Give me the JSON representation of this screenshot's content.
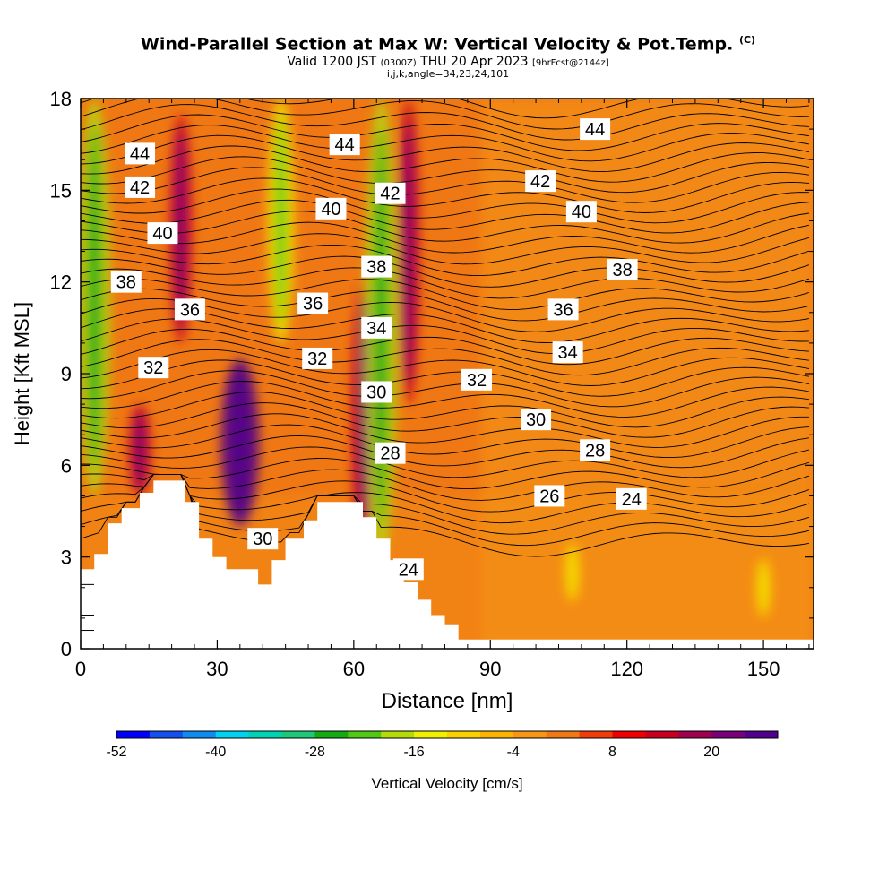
{
  "titles": {
    "main": "Wind-Parallel Section at Max W: Vertical Velocity & Pot.Temp.",
    "main_mark": "(C)",
    "valid_prefix": "Valid 1200 JST",
    "valid_zulu": "(0300Z)",
    "valid_date": "THU 20 Apr 2023",
    "forecast": "[9hrFcst@2144z]",
    "indices": "i,j,k,angle=34,23,24,101"
  },
  "chart_data": {
    "type": "heatmap",
    "title": "Wind-Parallel Section at Max W: Vertical Velocity & Pot.Temp.",
    "xlabel": "Distance [nm]",
    "ylabel": "Height [Kft MSL]",
    "xlim": [
      0,
      161
    ],
    "ylim": [
      0,
      18
    ],
    "x_ticks": [
      0,
      30,
      60,
      90,
      120,
      150
    ],
    "y_ticks": [
      0,
      3,
      6,
      9,
      12,
      15,
      18
    ],
    "colorbar": {
      "label": "Vertical Velocity [cm/s]",
      "min": -52,
      "max": 28,
      "step": 4,
      "tick_values": [
        -52,
        -40,
        -28,
        -16,
        -4,
        8,
        20
      ],
      "colors": [
        "#0000ff",
        "#1450f0",
        "#0f8cf0",
        "#00d2f0",
        "#00d2b4",
        "#1ec878",
        "#14aa14",
        "#50c814",
        "#b4dc0a",
        "#f0f000",
        "#fad200",
        "#fab400",
        "#f59614",
        "#f07814",
        "#f03c0a",
        "#f00000",
        "#c8001e",
        "#a00050",
        "#780078",
        "#50008c"
      ]
    },
    "velocity_features": [
      {
        "x": 3,
        "y_range": [
          5,
          18
        ],
        "w_cms": -20
      },
      {
        "x": 13,
        "y_range": [
          5,
          8
        ],
        "w_cms": 14
      },
      {
        "x": 22,
        "y_range": [
          10,
          17.5
        ],
        "w_cms": 14
      },
      {
        "x": 35,
        "y_range": [
          4,
          9.5
        ],
        "w_cms": 24
      },
      {
        "x": 44,
        "y_range": [
          10,
          18
        ],
        "w_cms": -16
      },
      {
        "x": 62,
        "y_range": [
          3,
          12
        ],
        "w_cms": 14
      },
      {
        "x": 66,
        "y_range": [
          3,
          18
        ],
        "w_cms": -20
      },
      {
        "x": 72,
        "y_range": [
          8,
          18
        ],
        "w_cms": 14
      },
      {
        "x": 108,
        "y_range": [
          1.5,
          3.5
        ],
        "w_cms": -8
      },
      {
        "x": 150,
        "y_range": [
          1,
          3
        ],
        "w_cms": -8
      }
    ],
    "theta_contours": {
      "variable": "Potential temperature (C)",
      "interval": 1,
      "labels": [
        {
          "value": 44,
          "x": 13,
          "y": 16.2
        },
        {
          "value": 44,
          "x": 58,
          "y": 16.5
        },
        {
          "value": 44,
          "x": 113,
          "y": 17.0
        },
        {
          "value": 42,
          "x": 13,
          "y": 15.1
        },
        {
          "value": 42,
          "x": 68,
          "y": 14.9
        },
        {
          "value": 42,
          "x": 101,
          "y": 15.3
        },
        {
          "value": 40,
          "x": 18,
          "y": 13.6
        },
        {
          "value": 40,
          "x": 55,
          "y": 14.4
        },
        {
          "value": 40,
          "x": 110,
          "y": 14.3
        },
        {
          "value": 38,
          "x": 10,
          "y": 12.0
        },
        {
          "value": 38,
          "x": 65,
          "y": 12.5
        },
        {
          "value": 38,
          "x": 119,
          "y": 12.4
        },
        {
          "value": 36,
          "x": 24,
          "y": 11.1
        },
        {
          "value": 36,
          "x": 51,
          "y": 11.3
        },
        {
          "value": 36,
          "x": 106,
          "y": 11.1
        },
        {
          "value": 34,
          "x": 65,
          "y": 10.5
        },
        {
          "value": 34,
          "x": 107,
          "y": 9.7
        },
        {
          "value": 32,
          "x": 16,
          "y": 9.2
        },
        {
          "value": 32,
          "x": 52,
          "y": 9.5
        },
        {
          "value": 32,
          "x": 87,
          "y": 8.8
        },
        {
          "value": 30,
          "x": 65,
          "y": 8.4
        },
        {
          "value": 30,
          "x": 100,
          "y": 7.5
        },
        {
          "value": 30,
          "x": 40,
          "y": 3.6
        },
        {
          "value": 28,
          "x": 68,
          "y": 6.4
        },
        {
          "value": 28,
          "x": 113,
          "y": 6.5
        },
        {
          "value": 26,
          "x": 103,
          "y": 5.0
        },
        {
          "value": 24,
          "x": 121,
          "y": 4.9
        },
        {
          "value": 24,
          "x": 72,
          "y": 2.6
        }
      ]
    },
    "terrain_kft": [
      [
        0,
        2.6
      ],
      [
        3,
        2.6
      ],
      [
        3,
        3.1
      ],
      [
        6,
        3.1
      ],
      [
        6,
        4.1
      ],
      [
        9,
        4.1
      ],
      [
        9,
        4.6
      ],
      [
        13,
        4.6
      ],
      [
        13,
        5.1
      ],
      [
        16,
        5.1
      ],
      [
        16,
        5.5
      ],
      [
        23,
        5.5
      ],
      [
        23,
        4.8
      ],
      [
        26,
        4.8
      ],
      [
        26,
        3.6
      ],
      [
        29,
        3.6
      ],
      [
        29,
        3.0
      ],
      [
        32,
        3.0
      ],
      [
        32,
        2.6
      ],
      [
        39,
        2.6
      ],
      [
        39,
        2.1
      ],
      [
        42,
        2.1
      ],
      [
        42,
        2.9
      ],
      [
        45,
        2.9
      ],
      [
        45,
        3.6
      ],
      [
        49,
        3.6
      ],
      [
        49,
        4.2
      ],
      [
        52,
        4.2
      ],
      [
        52,
        4.8
      ],
      [
        62,
        4.8
      ],
      [
        62,
        4.3
      ],
      [
        65,
        4.3
      ],
      [
        65,
        3.6
      ],
      [
        68,
        3.6
      ],
      [
        68,
        2.9
      ],
      [
        71,
        2.9
      ],
      [
        71,
        2.2
      ],
      [
        74,
        2.2
      ],
      [
        74,
        1.6
      ],
      [
        77,
        1.6
      ],
      [
        77,
        1.1
      ],
      [
        80,
        1.1
      ],
      [
        80,
        0.8
      ],
      [
        83,
        0.8
      ],
      [
        83,
        0.3
      ],
      [
        161,
        0.3
      ]
    ]
  }
}
